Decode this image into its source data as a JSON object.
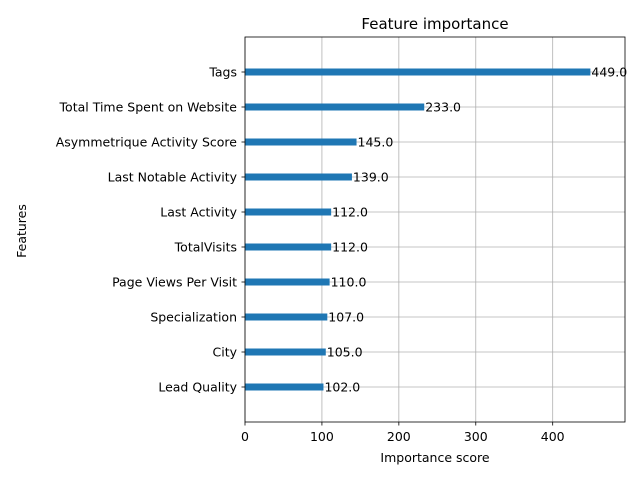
{
  "chart_data": {
    "type": "bar",
    "orientation": "horizontal",
    "title": "Feature importance",
    "xlabel": "Importance score",
    "ylabel": "Features",
    "categories": [
      "Tags",
      "Total Time Spent on Website",
      "Asymmetrique Activity Score",
      "Last Notable Activity",
      "Last Activity",
      "TotalVisits",
      "Page Views Per Visit",
      "Specialization",
      "City",
      "Lead Quality"
    ],
    "values": [
      449,
      233,
      145,
      139,
      112,
      112,
      110,
      107,
      105,
      102
    ],
    "data_labels": [
      "449.0",
      "233.0",
      "145.0",
      "139.0",
      "112.0",
      "112.0",
      "110.0",
      "107.0",
      "105.0",
      "102.0"
    ],
    "xlim": [
      0,
      494
    ],
    "xticks": [
      0,
      100,
      200,
      300,
      400
    ],
    "xtick_labels": [
      "0",
      "100",
      "200",
      "300",
      "400"
    ],
    "grid": true,
    "bar_color": "#1f77b4",
    "grid_color": "#b0b0b0"
  }
}
